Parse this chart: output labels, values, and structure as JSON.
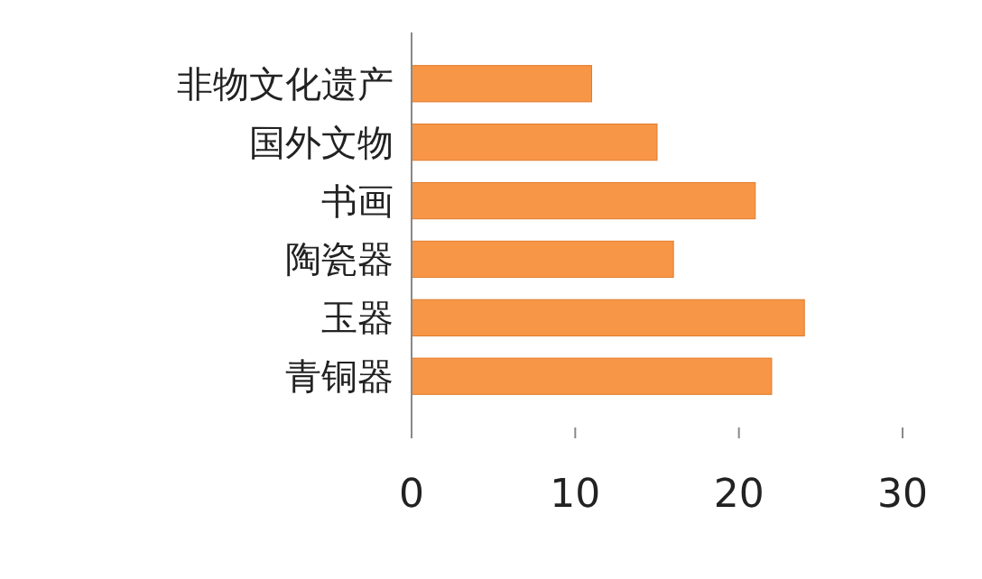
{
  "chart_data": {
    "type": "bar",
    "orientation": "horizontal",
    "categories": [
      "非物文化遗产",
      "国外文物",
      "书画",
      "陶瓷器",
      "玉器",
      "青铜器"
    ],
    "values": [
      11,
      15,
      21,
      16,
      24,
      22
    ],
    "color": "#f79646",
    "xlim": [
      0,
      30
    ],
    "xticks": [
      0,
      10,
      20,
      30
    ]
  }
}
